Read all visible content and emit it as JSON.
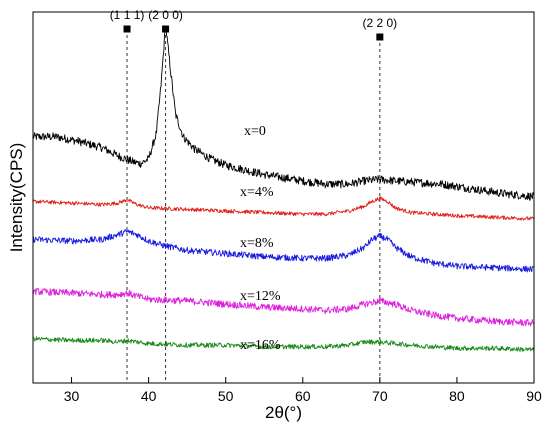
{
  "chart_data": {
    "type": "line",
    "xlabel": "2θ(°)",
    "ylabel": "Intensity(CPS)",
    "xlim": [
      25,
      90
    ],
    "x_ticks": [
      30,
      40,
      50,
      60,
      70,
      80,
      90
    ],
    "y_ticks_shown": false,
    "grid": false,
    "legend": "inline labels beside each curve",
    "reference_lines": [
      {
        "label": "(1 1 1)",
        "x": 37.2
      },
      {
        "label": "(2 0 0)",
        "x": 42.2
      },
      {
        "label": "(2 2 0)",
        "x": 70.0
      }
    ],
    "series": [
      {
        "name": "x=0",
        "color": "#000000",
        "x": [
          25,
          28,
          31,
          34,
          36,
          37,
          38,
          39,
          40,
          41,
          41.6,
          42.2,
          42.8,
          43.5,
          44.5,
          46,
          48,
          50,
          55,
          60,
          63,
          66,
          68,
          70,
          72,
          75,
          78,
          82,
          86,
          90
        ],
        "y": [
          96,
          96,
          93,
          89,
          84,
          82,
          80,
          79,
          82,
          98,
          128,
          167,
          140,
          110,
          96,
          88,
          82,
          78,
          72,
          68,
          66,
          66,
          68,
          69,
          68,
          67,
          66,
          63,
          60,
          58
        ]
      },
      {
        "name": "x=4%",
        "color": "#e0201a",
        "x": [
          25,
          30,
          34,
          36,
          37.2,
          38.5,
          40,
          45,
          50,
          55,
          60,
          63,
          66,
          68,
          69,
          70,
          71,
          72,
          74,
          77,
          80,
          85,
          90
        ],
        "y": [
          55,
          54,
          53,
          54,
          56,
          53,
          51,
          50,
          49,
          48,
          47,
          47,
          49,
          52,
          55,
          57,
          55,
          51,
          48,
          47,
          46,
          45,
          44
        ]
      },
      {
        "name": "x=8%",
        "color": "#1a1ae0",
        "x": [
          25,
          30,
          34,
          36,
          37.2,
          38.5,
          40,
          42,
          45,
          50,
          55,
          60,
          63,
          66,
          68,
          69,
          70,
          71,
          72,
          74,
          77,
          80,
          85,
          90
        ],
        "y": [
          31,
          30,
          31,
          34,
          36,
          34,
          30,
          27,
          24,
          22,
          20,
          19,
          19,
          21,
          26,
          31,
          33,
          31,
          26,
          20,
          16,
          14,
          13,
          12
        ]
      },
      {
        "name": "x=12%",
        "color": "#dd22dd",
        "x": [
          25,
          30,
          34,
          36,
          37.2,
          38.5,
          40,
          45,
          50,
          55,
          60,
          63,
          66,
          68,
          70,
          72,
          74,
          77,
          80,
          85,
          90
        ],
        "y": [
          -2,
          -3,
          -4,
          -4,
          -3,
          -5,
          -7,
          -8,
          -10,
          -12,
          -13,
          -14,
          -13,
          -10,
          -8,
          -10,
          -14,
          -17,
          -19,
          -21,
          -22
        ]
      },
      {
        "name": "x=16%",
        "color": "#1a8a1a",
        "x": [
          25,
          30,
          34,
          36,
          37.2,
          38.5,
          40,
          45,
          50,
          55,
          60,
          63,
          66,
          68,
          70,
          72,
          74,
          77,
          80,
          85,
          90
        ],
        "y": [
          -32,
          -33,
          -33,
          -34,
          -33,
          -34,
          -35,
          -36,
          -36,
          -37,
          -37,
          -37,
          -36,
          -34,
          -34,
          -35,
          -36,
          -37,
          -38,
          -38,
          -39
        ]
      }
    ]
  }
}
